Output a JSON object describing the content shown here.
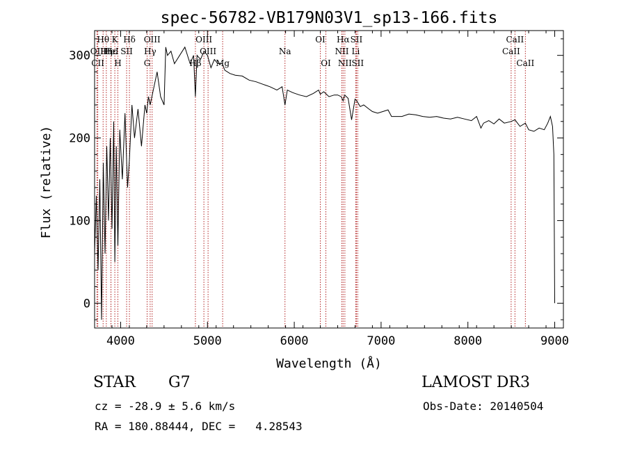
{
  "chart_data": {
    "type": "line",
    "title": "spec-56782-VB179N03V1_sp13-166.fits",
    "xlabel": "Wavelength (Å)",
    "ylabel": "Flux (relative)",
    "xlim": [
      3700,
      9100
    ],
    "ylim": [
      -30,
      330
    ],
    "x_ticks": [
      4000,
      5000,
      6000,
      7000,
      8000,
      9000
    ],
    "y_ticks": [
      0,
      100,
      200,
      300
    ],
    "grid": false,
    "line_color": "#000000",
    "marker_color": "#b22222",
    "series": [
      {
        "x": [
          3700,
          3720,
          3740,
          3760,
          3780,
          3800,
          3820,
          3840,
          3860,
          3880,
          3900,
          3920,
          3933,
          3950,
          3968,
          3990,
          4020,
          4050,
          4080,
          4101,
          4130,
          4160,
          4200,
          4240,
          4280,
          4300,
          4320,
          4340,
          4380,
          4420,
          4460,
          4500,
          4520,
          4540,
          4580,
          4620,
          4680,
          4740,
          4800,
          4840,
          4861,
          4880,
          4920,
          4960,
          5000,
          5040,
          5080,
          5120,
          5170,
          5200,
          5260,
          5320,
          5400,
          5480,
          5560,
          5640,
          5720,
          5800,
          5860,
          5893,
          5920,
          5980,
          6060,
          6140,
          6220,
          6280,
          6300,
          6340,
          6400,
          6460,
          6500,
          6540,
          6563,
          6580,
          6620,
          6660,
          6700,
          6720,
          6760,
          6800,
          6860,
          6900,
          6960,
          7020,
          7080,
          7120,
          7180,
          7240,
          7320,
          7400,
          7480,
          7560,
          7640,
          7720,
          7800,
          7880,
          7960,
          8040,
          8100,
          8150,
          8180,
          8240,
          8300,
          8360,
          8420,
          8498,
          8542,
          8600,
          8662,
          8700,
          8760,
          8820,
          8880,
          8920,
          8950,
          8975,
          8990,
          9000
        ],
        "y": [
          60,
          130,
          40,
          150,
          -20,
          170,
          60,
          190,
          100,
          200,
          90,
          220,
          50,
          190,
          70,
          210,
          150,
          230,
          140,
          175,
          240,
          200,
          235,
          190,
          240,
          230,
          250,
          240,
          260,
          280,
          250,
          240,
          310,
          300,
          305,
          290,
          300,
          310,
          290,
          300,
          250,
          300,
          295,
          305,
          300,
          285,
          295,
          290,
          290,
          282,
          278,
          276,
          275,
          270,
          268,
          265,
          262,
          258,
          262,
          240,
          258,
          255,
          252,
          250,
          254,
          258,
          253,
          256,
          250,
          252,
          252,
          250,
          245,
          252,
          248,
          222,
          247,
          245,
          238,
          240,
          235,
          232,
          230,
          232,
          234,
          226,
          226,
          226,
          229,
          228,
          226,
          225,
          226,
          224,
          223,
          225,
          223,
          221,
          226,
          212,
          218,
          221,
          217,
          223,
          218,
          220,
          222,
          214,
          218,
          210,
          208,
          212,
          210,
          218,
          226,
          214,
          180,
          0
        ]
      }
    ],
    "lines": [
      {
        "label": "Hθ",
        "x": 3798,
        "row": 0
      },
      {
        "label": "OII",
        "x": 3727,
        "row": 1
      },
      {
        "label": "CII",
        "x": 3737,
        "row": 2
      },
      {
        "label": "Hη",
        "x": 3835,
        "row": 1
      },
      {
        "label": "Hε",
        "x": 3889,
        "row": 1
      },
      {
        "label": "K",
        "x": 3933,
        "row": 0
      },
      {
        "label": "H",
        "x": 3968,
        "row": 2
      },
      {
        "label": "HeI",
        "x": 3888,
        "row": 1
      },
      {
        "label": "SII",
        "x": 4069,
        "row": 1
      },
      {
        "label": "Hδ",
        "x": 4101,
        "row": 0
      },
      {
        "label": "OIII",
        "x": 4363,
        "row": 0
      },
      {
        "label": "Hγ",
        "x": 4340,
        "row": 1
      },
      {
        "label": "G",
        "x": 4305,
        "row": 2
      },
      {
        "label": "Hβ",
        "x": 4861,
        "row": 2
      },
      {
        "label": "OIII",
        "x": 4959,
        "row": 0
      },
      {
        "label": "OIII",
        "x": 5007,
        "row": 1
      },
      {
        "label": "Mg",
        "x": 5175,
        "row": 2
      },
      {
        "label": "Na",
        "x": 5893,
        "row": 1
      },
      {
        "label": "OI",
        "x": 6300,
        "row": 0
      },
      {
        "label": "OI",
        "x": 6364,
        "row": 2
      },
      {
        "label": "Hα",
        "x": 6563,
        "row": 0
      },
      {
        "label": "NII",
        "x": 6548,
        "row": 1
      },
      {
        "label": "NII",
        "x": 6583,
        "row": 2
      },
      {
        "label": "SII",
        "x": 6716,
        "row": 0
      },
      {
        "label": "Li",
        "x": 6708,
        "row": 1
      },
      {
        "label": "SII",
        "x": 6731,
        "row": 2
      },
      {
        "label": "CaII",
        "x": 8542,
        "row": 0
      },
      {
        "label": "CaII",
        "x": 8498,
        "row": 1
      },
      {
        "label": "CaII",
        "x": 8662,
        "row": 2
      }
    ]
  },
  "info": {
    "class_label": "STAR",
    "subclass": "G7",
    "survey": "LAMOST DR3",
    "cz": "cz = -28.9 ± 5.6 km/s",
    "obs_date": "Obs-Date: 20140504",
    "coords": "RA = 180.88444, DEC =   4.28543"
  }
}
